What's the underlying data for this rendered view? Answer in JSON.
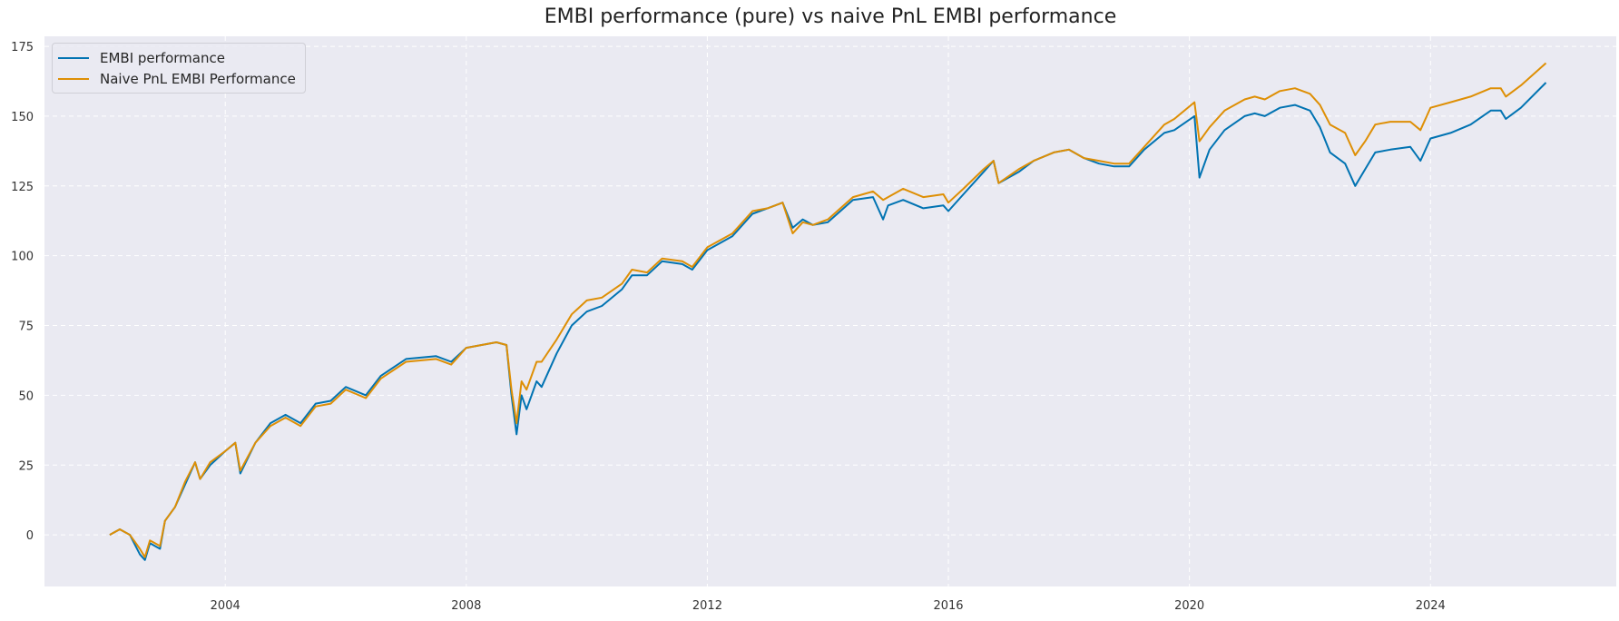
{
  "chart_data": {
    "type": "line",
    "title": "EMBI performance (pure) vs naive PnL EMBI performance",
    "xlabel": "",
    "ylabel": "",
    "xlim": [
      "2001-01",
      "2027-02"
    ],
    "ylim": [
      -18.5,
      178.6
    ],
    "x_ticks": [
      "2004",
      "2008",
      "2012",
      "2016",
      "2020",
      "2024"
    ],
    "y_ticks": [
      0,
      25,
      50,
      75,
      100,
      125,
      150,
      175
    ],
    "grid": true,
    "legend_position": "top-left",
    "background_color": "#eaeaf2",
    "x": [
      "2002-02",
      "2002-04",
      "2002-06",
      "2002-08",
      "2002-09",
      "2002-10",
      "2002-12",
      "2003-01",
      "2003-03",
      "2003-05",
      "2003-07",
      "2003-08",
      "2003-10",
      "2004-01",
      "2004-03",
      "2004-04",
      "2004-07",
      "2004-10",
      "2005-01",
      "2005-04",
      "2005-07",
      "2005-10",
      "2006-01",
      "2006-05",
      "2006-08",
      "2007-01",
      "2007-07",
      "2007-10",
      "2008-01",
      "2008-07",
      "2008-09",
      "2008-10",
      "2008-11",
      "2008-12",
      "2009-01",
      "2009-03",
      "2009-04",
      "2009-07",
      "2009-10",
      "2010-01",
      "2010-04",
      "2010-08",
      "2010-10",
      "2011-01",
      "2011-04",
      "2011-08",
      "2011-10",
      "2012-01",
      "2012-03",
      "2012-06",
      "2012-10",
      "2013-01",
      "2013-04",
      "2013-06",
      "2013-08",
      "2013-10",
      "2014-01",
      "2014-06",
      "2014-10",
      "2014-12",
      "2015-01",
      "2015-04",
      "2015-08",
      "2015-12",
      "2016-01",
      "2016-04",
      "2016-08",
      "2016-10",
      "2016-11",
      "2017-03",
      "2017-06",
      "2017-10",
      "2018-01",
      "2018-04",
      "2018-07",
      "2018-10",
      "2019-01",
      "2019-04",
      "2019-08",
      "2019-10",
      "2020-02",
      "2020-03",
      "2020-05",
      "2020-08",
      "2020-12",
      "2021-02",
      "2021-04",
      "2021-07",
      "2021-10",
      "2022-01",
      "2022-03",
      "2022-05",
      "2022-08",
      "2022-10",
      "2022-12",
      "2023-02",
      "2023-05",
      "2023-09",
      "2023-11",
      "2024-01",
      "2024-05",
      "2024-09",
      "2025-01",
      "2025-03",
      "2025-04",
      "2025-07",
      "2025-12"
    ],
    "series": [
      {
        "name": "EMBI performance",
        "color": "#0173b2",
        "values": [
          0,
          2,
          0,
          -7,
          -9,
          -3,
          -5,
          5,
          10,
          18,
          26,
          20,
          25,
          30,
          33,
          22,
          33,
          40,
          43,
          40,
          47,
          48,
          53,
          50,
          57,
          63,
          64,
          62,
          67,
          69,
          68,
          50,
          36,
          50,
          45,
          55,
          53,
          65,
          75,
          80,
          82,
          88,
          93,
          93,
          98,
          97,
          95,
          102,
          104,
          107,
          115,
          117,
          119,
          110,
          113,
          111,
          112,
          120,
          121,
          113,
          118,
          120,
          117,
          118,
          116,
          122,
          130,
          134,
          126,
          130,
          134,
          137,
          138,
          135,
          133,
          132,
          132,
          138,
          144,
          145,
          150,
          128,
          138,
          145,
          150,
          151,
          150,
          153,
          154,
          152,
          146,
          137,
          133,
          125,
          131,
          137,
          138,
          139,
          134,
          142,
          144,
          147,
          152,
          152,
          149,
          153,
          162
        ]
      },
      {
        "name": "Naive PnL EMBI Performance",
        "color": "#de8f05",
        "values": [
          0,
          2,
          0,
          -5,
          -8,
          -2,
          -4,
          5,
          10,
          19,
          26,
          20,
          26,
          30,
          33,
          23,
          33,
          39,
          42,
          39,
          46,
          47,
          52,
          49,
          56,
          62,
          63,
          61,
          67,
          69,
          68,
          52,
          40,
          55,
          52,
          62,
          62,
          70,
          79,
          84,
          85,
          90,
          95,
          94,
          99,
          98,
          96,
          103,
          105,
          108,
          116,
          117,
          119,
          108,
          112,
          111,
          113,
          121,
          123,
          120,
          121,
          124,
          121,
          122,
          119,
          124,
          131,
          134,
          126,
          131,
          134,
          137,
          138,
          135,
          134,
          133,
          133,
          139,
          147,
          149,
          155,
          141,
          146,
          152,
          156,
          157,
          156,
          159,
          160,
          158,
          154,
          147,
          144,
          136,
          141,
          147,
          148,
          148,
          145,
          153,
          155,
          157,
          160,
          160,
          157,
          161,
          169
        ]
      }
    ]
  }
}
